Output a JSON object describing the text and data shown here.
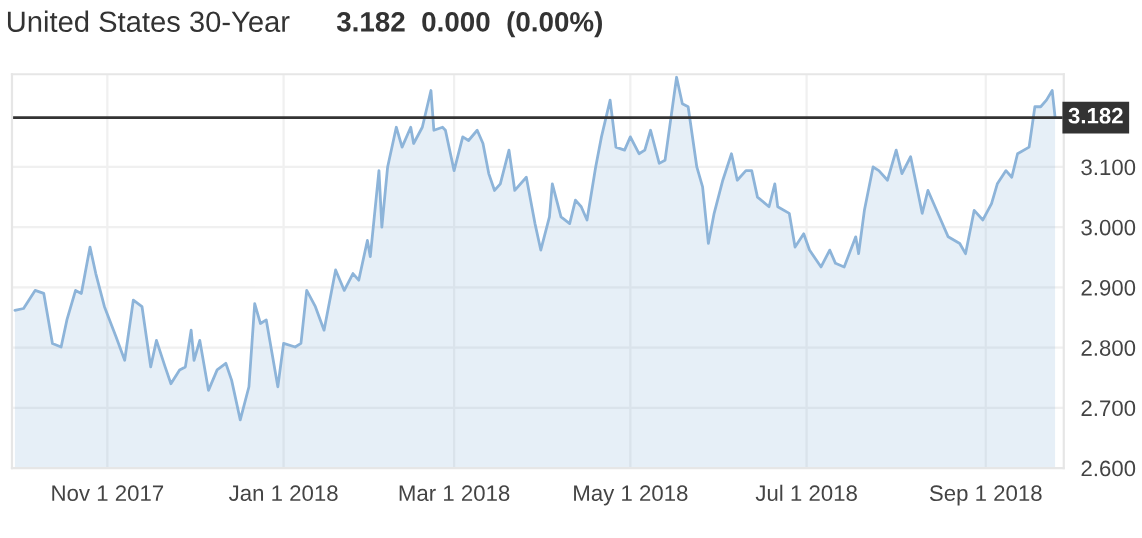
{
  "chart_data": {
    "type": "area",
    "title": "United States 30-Year",
    "subtitle": "3.182  0.000  (0.00%)",
    "x": [
      "2017-09-30",
      "2017-10-03",
      "2017-10-07",
      "2017-10-10",
      "2017-10-13",
      "2017-10-16",
      "2017-10-18",
      "2017-10-21",
      "2017-10-23",
      "2017-10-26",
      "2017-10-28",
      "2017-10-31",
      "2017-11-04",
      "2017-11-07",
      "2017-11-10",
      "2017-11-13",
      "2017-11-16",
      "2017-11-18",
      "2017-11-21",
      "2017-11-23",
      "2017-11-26",
      "2017-11-28",
      "2017-11-30",
      "2017-12-01",
      "2017-12-03",
      "2017-12-06",
      "2017-12-09",
      "2017-12-12",
      "2017-12-14",
      "2017-12-17",
      "2017-12-20",
      "2017-12-22",
      "2017-12-24",
      "2017-12-26",
      "2017-12-30",
      "2018-01-01",
      "2018-01-05",
      "2018-01-07",
      "2018-01-09",
      "2018-01-12",
      "2018-01-15",
      "2018-01-19",
      "2018-01-22",
      "2018-01-25",
      "2018-01-27",
      "2018-01-30",
      "2018-01-31",
      "2018-02-03",
      "2018-02-04",
      "2018-02-06",
      "2018-02-09",
      "2018-02-11",
      "2018-02-14",
      "2018-02-15",
      "2018-02-18",
      "2018-02-21",
      "2018-02-22",
      "2018-02-25",
      "2018-02-26",
      "2018-03-01",
      "2018-03-04",
      "2018-03-06",
      "2018-03-09",
      "2018-03-11",
      "2018-03-13",
      "2018-03-15",
      "2018-03-17",
      "2018-03-20",
      "2018-03-22",
      "2018-03-26",
      "2018-03-29",
      "2018-03-31",
      "2018-04-03",
      "2018-04-04",
      "2018-04-07",
      "2018-04-10",
      "2018-04-12",
      "2018-04-14",
      "2018-04-16",
      "2018-04-19",
      "2018-04-21",
      "2018-04-24",
      "2018-04-26",
      "2018-04-29",
      "2018-05-01",
      "2018-05-04",
      "2018-05-06",
      "2018-05-08",
      "2018-05-11",
      "2018-05-13",
      "2018-05-17",
      "2018-05-19",
      "2018-05-21",
      "2018-05-24",
      "2018-05-26",
      "2018-05-28",
      "2018-05-30",
      "2018-06-02",
      "2018-06-05",
      "2018-06-07",
      "2018-06-10",
      "2018-06-12",
      "2018-06-14",
      "2018-06-18",
      "2018-06-20",
      "2018-06-21",
      "2018-06-25",
      "2018-06-27",
      "2018-06-30",
      "2018-07-02",
      "2018-07-06",
      "2018-07-09",
      "2018-07-11",
      "2018-07-14",
      "2018-07-18",
      "2018-07-19",
      "2018-07-21",
      "2018-07-24",
      "2018-07-26",
      "2018-07-29",
      "2018-08-01",
      "2018-08-03",
      "2018-08-06",
      "2018-08-10",
      "2018-08-12",
      "2018-08-16",
      "2018-08-19",
      "2018-08-23",
      "2018-08-25",
      "2018-08-28",
      "2018-08-31",
      "2018-09-03",
      "2018-09-05",
      "2018-09-08",
      "2018-09-10",
      "2018-09-12",
      "2018-09-16",
      "2018-09-18",
      "2018-09-20",
      "2018-09-22",
      "2018-09-24",
      "2018-09-25"
    ],
    "series": [
      {
        "color": "#8db4d9",
        "values": [
          2.862,
          2.865,
          2.895,
          2.89,
          2.807,
          2.801,
          2.846,
          2.895,
          2.89,
          2.967,
          2.923,
          2.868,
          2.818,
          2.779,
          2.879,
          2.868,
          2.768,
          2.812,
          2.768,
          2.74,
          2.763,
          2.768,
          2.829,
          2.779,
          2.812,
          2.729,
          2.763,
          2.774,
          2.746,
          2.68,
          2.735,
          2.873,
          2.84,
          2.846,
          2.735,
          2.807,
          2.801,
          2.807,
          2.895,
          2.868,
          2.829,
          2.929,
          2.895,
          2.923,
          2.912,
          2.978,
          2.951,
          3.094,
          3.0,
          3.1,
          3.166,
          3.133,
          3.166,
          3.139,
          3.166,
          3.227,
          3.161,
          3.166,
          3.161,
          3.094,
          3.15,
          3.144,
          3.161,
          3.139,
          3.089,
          3.061,
          3.072,
          3.128,
          3.061,
          3.083,
          3.006,
          2.962,
          3.017,
          3.072,
          3.017,
          3.006,
          3.045,
          3.034,
          3.012,
          3.1,
          3.15,
          3.211,
          3.133,
          3.128,
          3.15,
          3.122,
          3.128,
          3.161,
          3.106,
          3.111,
          3.249,
          3.205,
          3.2,
          3.1,
          3.067,
          2.973,
          3.023,
          3.078,
          3.122,
          3.078,
          3.094,
          3.094,
          3.05,
          3.034,
          3.072,
          3.034,
          3.023,
          2.967,
          2.989,
          2.962,
          2.934,
          2.962,
          2.94,
          2.934,
          2.984,
          2.956,
          3.028,
          3.1,
          3.094,
          3.078,
          3.128,
          3.089,
          3.117,
          3.023,
          3.061,
          3.017,
          2.984,
          2.973,
          2.956,
          3.028,
          3.012,
          3.039,
          3.072,
          3.094,
          3.083,
          3.122,
          3.133,
          3.2,
          3.2,
          3.211,
          3.227,
          3.182
        ]
      }
    ],
    "xlim": [
      "2017-09-29",
      "2018-09-28"
    ],
    "xticks": [
      {
        "value": "2017-11-01",
        "label": "Nov 1 2017"
      },
      {
        "value": "2018-01-01",
        "label": "Jan 1 2018"
      },
      {
        "value": "2018-03-01",
        "label": "Mar 1 2018"
      },
      {
        "value": "2018-05-01",
        "label": "May 1 2018"
      },
      {
        "value": "2018-07-01",
        "label": "Jul 1 2018"
      },
      {
        "value": "2018-09-01",
        "label": "Sep 1 2018"
      }
    ],
    "ylim": [
      2.6,
      3.254
    ],
    "yticks": [
      {
        "value": 2.6,
        "label": "2.600"
      },
      {
        "value": 2.7,
        "label": "2.700"
      },
      {
        "value": 2.8,
        "label": "2.800"
      },
      {
        "value": 2.9,
        "label": "2.900"
      },
      {
        "value": 3.0,
        "label": "3.000"
      },
      {
        "value": 3.1,
        "label": "3.100"
      }
    ],
    "ref_lines": [
      {
        "axis": "y",
        "value": 3.182,
        "label": "3.182",
        "color": "#333333"
      }
    ],
    "grid": true
  }
}
